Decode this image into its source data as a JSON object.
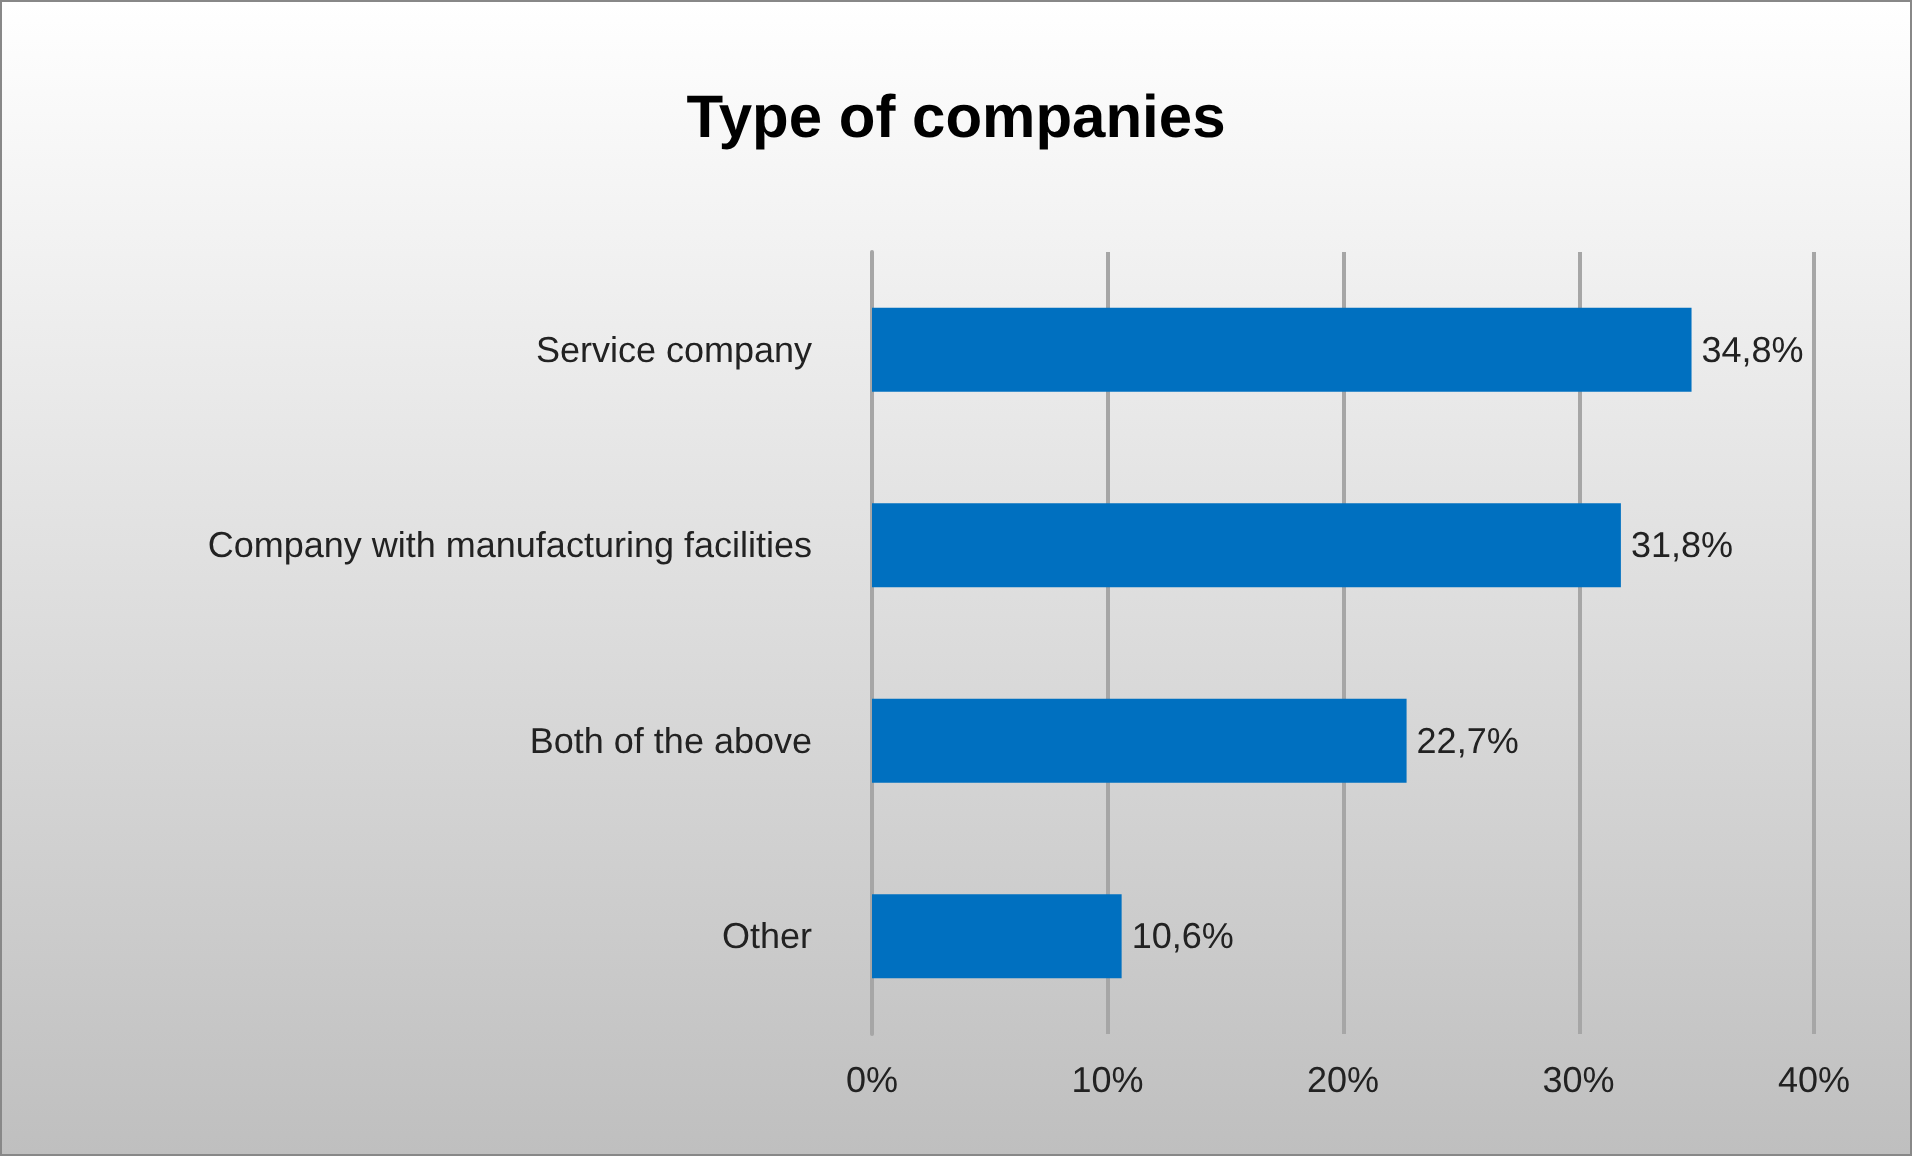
{
  "chart_data": {
    "type": "bar",
    "orientation": "horizontal",
    "title": "Type of companies",
    "categories": [
      "Service company",
      "Company with manufacturing facilities",
      "Both of the above",
      "Other"
    ],
    "values": [
      34.8,
      31.8,
      22.7,
      10.6
    ],
    "value_labels": [
      "34,8%",
      "31,8%",
      "22,7%",
      "10,6%"
    ],
    "color": "#0070c0",
    "xlim": [
      0,
      40
    ],
    "xticks": [
      {
        "value": 0,
        "label": "0%"
      },
      {
        "value": 10,
        "label": "10%"
      },
      {
        "value": 20,
        "label": "20%"
      },
      {
        "value": 30,
        "label": "30%"
      },
      {
        "value": 40,
        "label": "40%"
      }
    ],
    "grid": "x"
  }
}
